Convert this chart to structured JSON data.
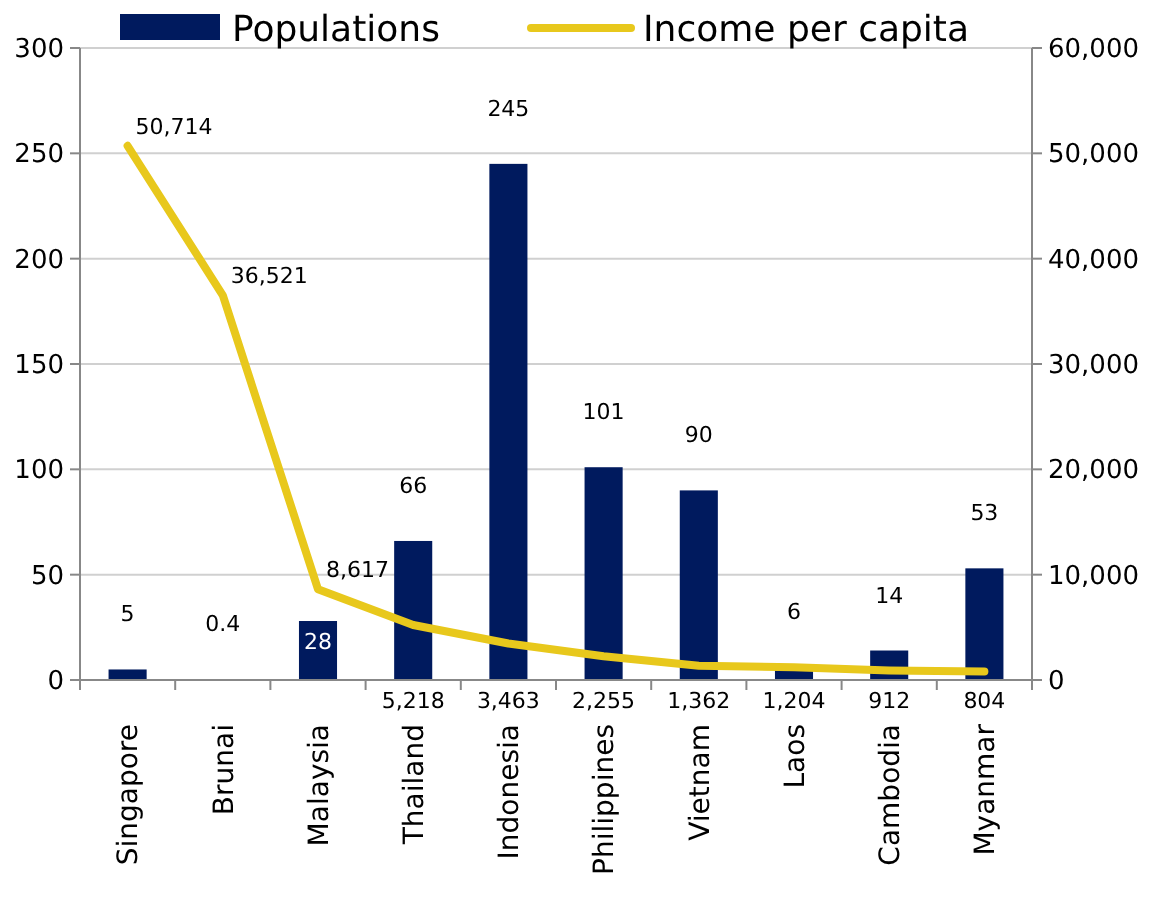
{
  "chart_data": {
    "type": "bar",
    "categories": [
      "Singapore",
      "Brunai",
      "Malaysia",
      "Thailand",
      "Indonesia",
      "Philippines",
      "Vietnam",
      "Laos",
      "Cambodia",
      "Myanmar"
    ],
    "series": [
      {
        "name": "Populations",
        "color": "#001a5e",
        "values": [
          5,
          0.4,
          28,
          66,
          245,
          101,
          90,
          6,
          14,
          53
        ],
        "value_labels": [
          "5",
          "0.4",
          "28",
          "66",
          "245",
          "101",
          "90",
          "6",
          "14",
          "53"
        ]
      },
      {
        "name": "Income per capita",
        "type": "line",
        "axis": "y2",
        "color": "#e8c81c",
        "values": [
          50714,
          36521,
          8617,
          5218,
          3463,
          2255,
          1362,
          1204,
          912,
          804
        ],
        "value_labels": [
          "50,714",
          "36,521",
          "8,617",
          "5,218",
          "3,463",
          "2,255",
          "1,362",
          "1,204",
          "912",
          "804"
        ]
      }
    ],
    "ylim": [
      0,
      300
    ],
    "yticks": [
      0,
      50,
      100,
      150,
      200,
      250,
      300
    ],
    "y2lim": [
      0,
      60000
    ],
    "y2ticks": [
      0,
      {
        "value": 10000,
        "label": "10,000"
      },
      {
        "value": 20000,
        "label": "20,000"
      },
      {
        "value": 30000,
        "label": "30,000"
      },
      {
        "value": 40000,
        "label": "40,000"
      },
      {
        "value": 50000,
        "label": "50,000"
      },
      {
        "value": 60000,
        "label": "60,000"
      }
    ],
    "grid": "y",
    "legend": "top",
    "marker": "none",
    "line_style": "solid"
  }
}
